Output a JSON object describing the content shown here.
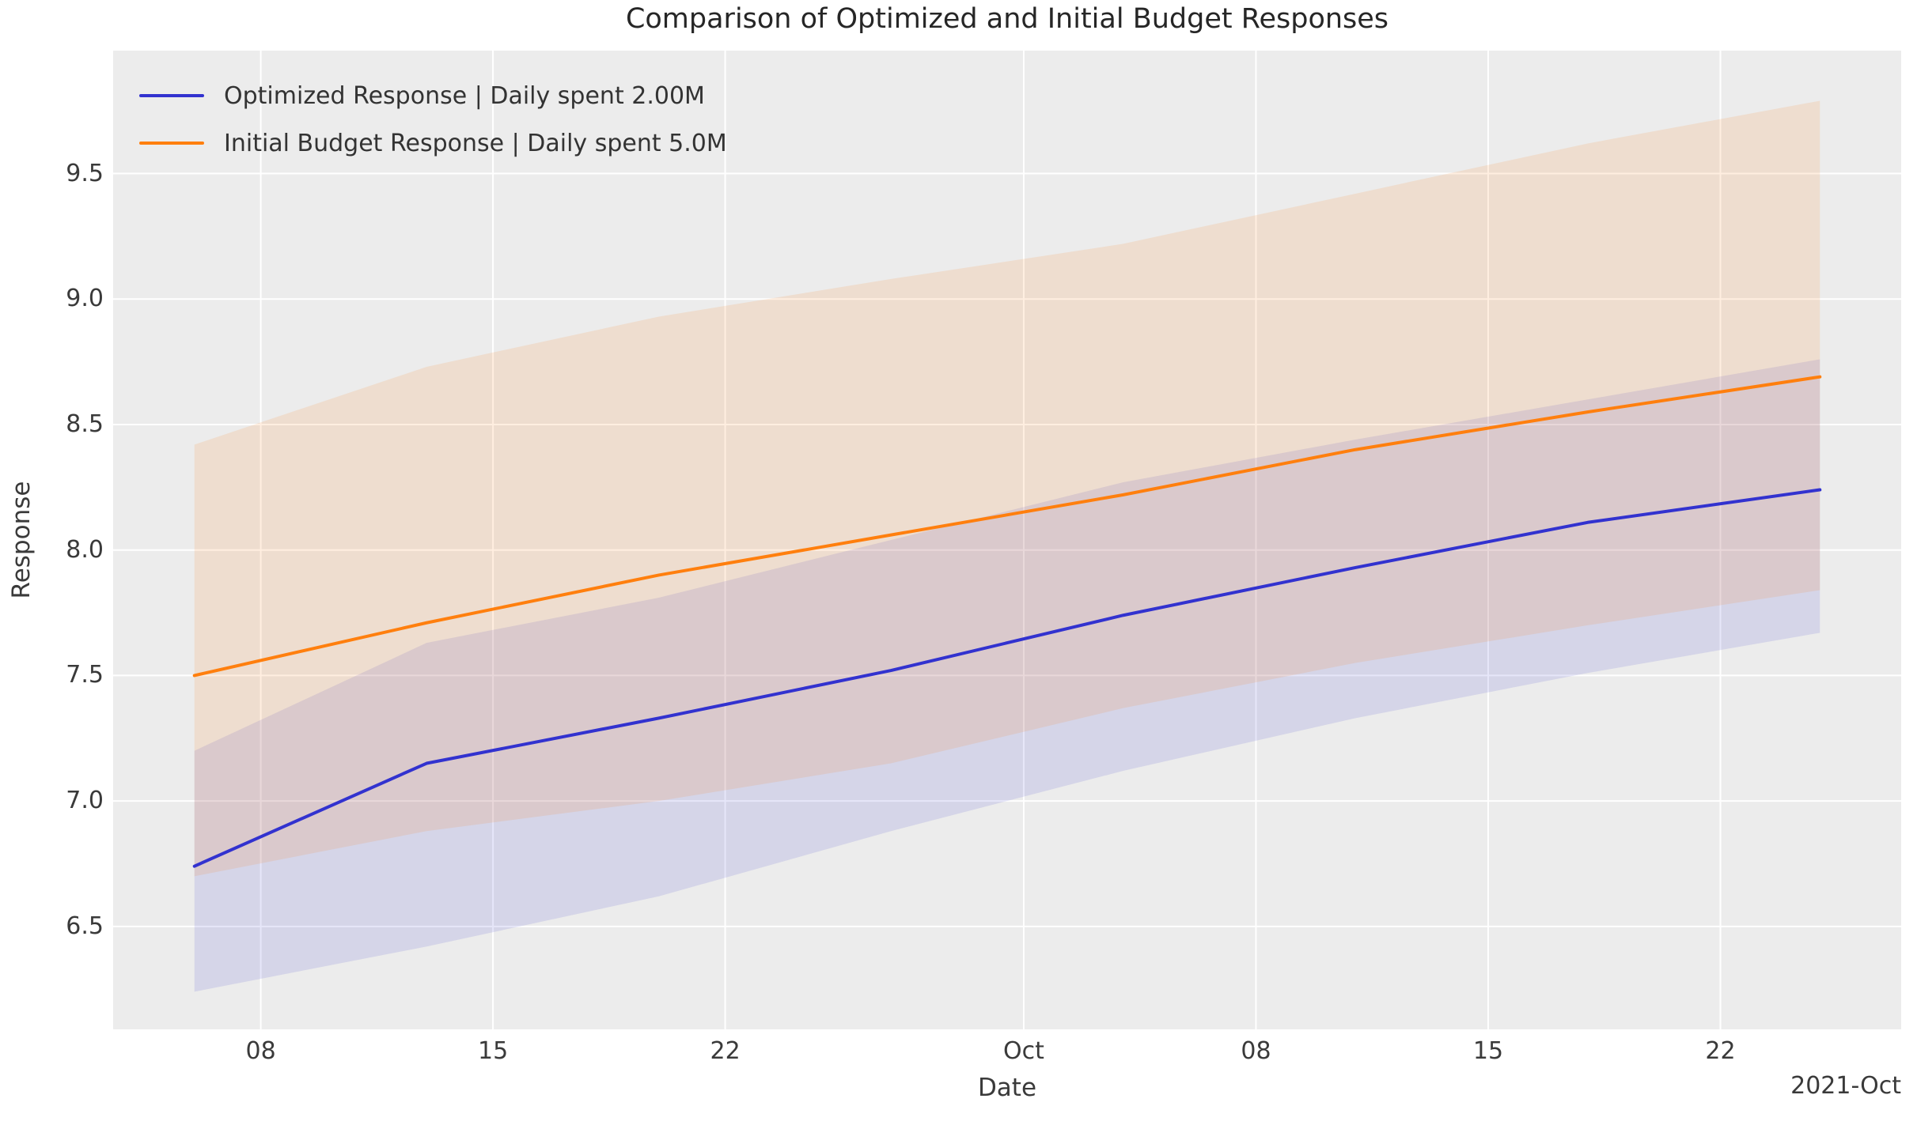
{
  "title": "Comparison of Optimized and Initial Budget Responses",
  "chart_data": {
    "type": "line",
    "title": "Comparison of Optimized and Initial Budget Responses",
    "xlabel": "Date",
    "ylabel": "Response",
    "x_offset_label": "2021-Oct",
    "grid": true,
    "legend_position": "upper left",
    "x_unit": "days since 2021-09-06",
    "x": [
      0,
      7,
      14,
      21,
      28,
      35,
      42,
      49
    ],
    "x_dates": [
      "2021-09-06",
      "2021-09-13",
      "2021-09-20",
      "2021-09-27",
      "2021-10-04",
      "2021-10-11",
      "2021-10-18",
      "2021-10-25"
    ],
    "xlim": [
      -2.45,
      51.45
    ],
    "ylim": [
      6.09,
      9.99
    ],
    "xticks": [
      {
        "pos": 2,
        "label": "08"
      },
      {
        "pos": 9,
        "label": "15"
      },
      {
        "pos": 16,
        "label": "22"
      },
      {
        "pos": 25,
        "label": "Oct"
      },
      {
        "pos": 32,
        "label": "08"
      },
      {
        "pos": 39,
        "label": "15"
      },
      {
        "pos": 46,
        "label": "22"
      }
    ],
    "yticks": [
      {
        "pos": 6.5,
        "label": "6.5"
      },
      {
        "pos": 7.0,
        "label": "7.0"
      },
      {
        "pos": 7.5,
        "label": "7.5"
      },
      {
        "pos": 8.0,
        "label": "8.0"
      },
      {
        "pos": 8.5,
        "label": "8.5"
      },
      {
        "pos": 9.0,
        "label": "9.0"
      },
      {
        "pos": 9.5,
        "label": "9.5"
      }
    ],
    "series": [
      {
        "name": "Optimized Response | Daily spent 2.00M",
        "daily_spent": "2.00M",
        "color": "#3232cf",
        "band_alpha": 0.12,
        "values": [
          6.74,
          7.15,
          7.33,
          7.52,
          7.74,
          7.93,
          8.11,
          8.24
        ],
        "band_high": [
          7.2,
          7.63,
          7.81,
          8.04,
          8.27,
          8.44,
          8.6,
          8.76
        ],
        "band_low": [
          6.24,
          6.42,
          6.62,
          6.88,
          7.12,
          7.33,
          7.51,
          7.67
        ]
      },
      {
        "name": "Initial Budget Response | Daily spent 5.0M",
        "daily_spent": "5.0M",
        "color": "#ff7f0e",
        "band_alpha": 0.13,
        "values": [
          7.5,
          7.71,
          7.9,
          8.06,
          8.22,
          8.4,
          8.55,
          8.69
        ],
        "band_high": [
          8.42,
          8.73,
          8.93,
          9.08,
          9.22,
          9.42,
          9.62,
          9.79
        ],
        "band_low": [
          6.7,
          6.88,
          7.0,
          7.15,
          7.37,
          7.55,
          7.7,
          7.84
        ]
      }
    ],
    "colors": {
      "figure_background": "#ffffff",
      "axes_background": "#ececec",
      "grid": "#ffffff",
      "tick_text": "#3a3a3a",
      "title_text": "#262626"
    }
  }
}
